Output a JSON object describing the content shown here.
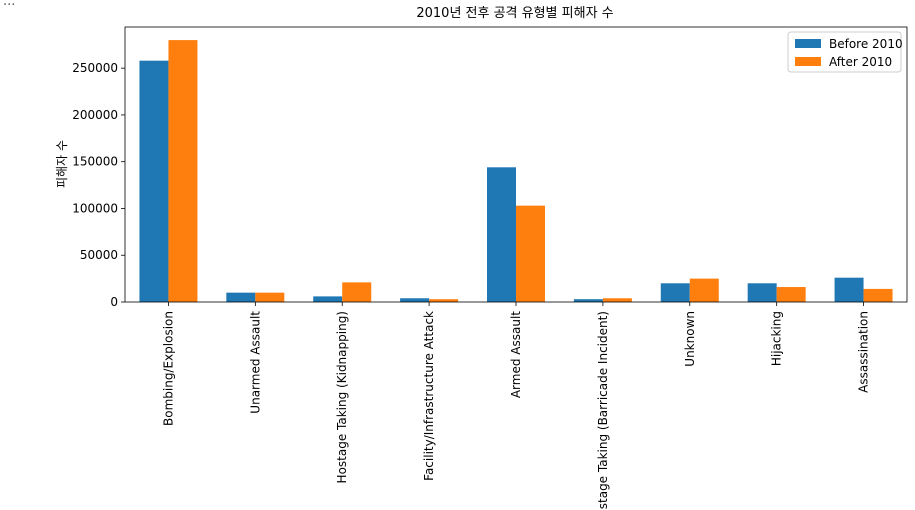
{
  "cell_marker": "...",
  "chart_data": {
    "type": "bar",
    "title": "2010년 전후 공격 유형별 피해자 수",
    "xlabel": "",
    "ylabel": "피해자 수",
    "categories": [
      "Bombing/Explosion",
      "Unarmed Assault",
      "Hostage Taking (Kidnapping)",
      "Facility/Infrastructure Attack",
      "Armed Assault",
      "Hostage Taking (Barricade Incident)",
      "Unknown",
      "Hijacking",
      "Assassination"
    ],
    "series": [
      {
        "name": "Before 2010",
        "color": "#1f77b4",
        "values": [
          258000,
          10000,
          6000,
          4000,
          144000,
          3000,
          20000,
          20000,
          26000
        ]
      },
      {
        "name": "After 2010",
        "color": "#ff7f0e",
        "values": [
          280000,
          10000,
          21000,
          3000,
          103000,
          4000,
          25000,
          16000,
          14000
        ]
      }
    ],
    "ylim": [
      0,
      294000
    ],
    "yticks": [
      0,
      50000,
      100000,
      150000,
      200000,
      250000
    ],
    "ytick_labels": [
      "0",
      "50000",
      "100000",
      "150000",
      "200000",
      "250000"
    ],
    "legend_position": "top-right",
    "grid": false
  }
}
